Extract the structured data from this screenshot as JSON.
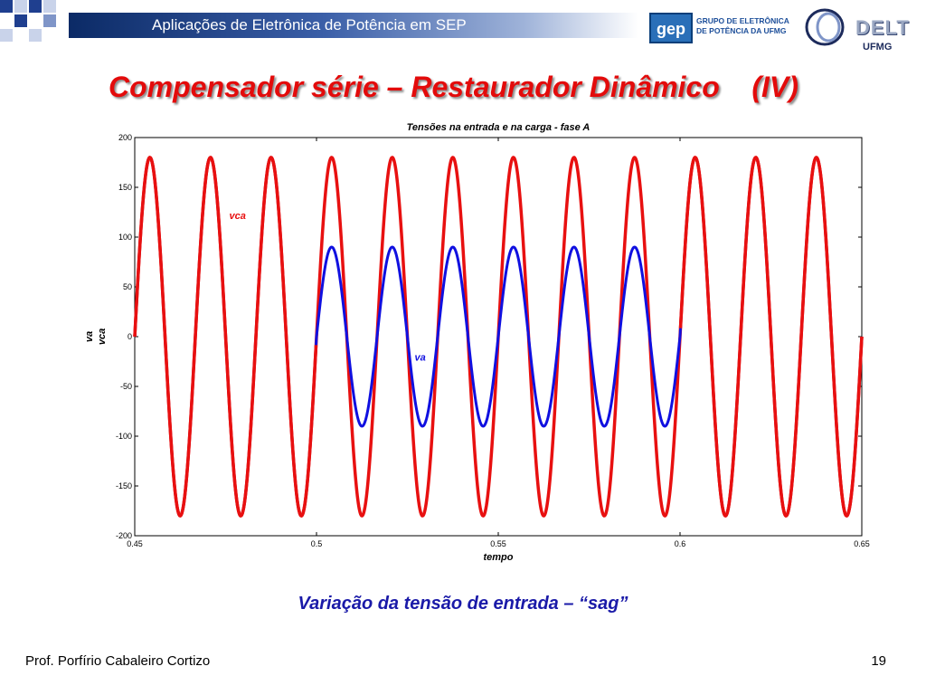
{
  "header": {
    "title": "Aplicações de Eletrônica de Potência em SEP",
    "logo_gep": "gep",
    "logo_gep_name": "GRUPO DE ELETRÔNICA DE POTÊNCIA DA UFMG",
    "logo_delt": "DELT",
    "logo_ufmg": "UFMG",
    "strip_color": "#0b2a66"
  },
  "slide": {
    "title": "Compensador série – Restaurador Dinâmico    (IV)",
    "caption": "Variação da tensão de entrada – “sag”",
    "author": "Prof. Porfírio Cabaleiro Cortizo",
    "page": "19"
  },
  "chart_data": {
    "type": "line",
    "title": "Tensões na entrada e na carga - fase A",
    "xlabel": "tempo",
    "ylabel": [
      "va",
      "vca"
    ],
    "xlim": [
      0.45,
      0.65
    ],
    "ylim": [
      -200,
      200
    ],
    "xticks": [
      0.45,
      0.5,
      0.55,
      0.6,
      0.65
    ],
    "yticks": [
      200,
      150,
      100,
      50,
      0,
      -50,
      -100,
      -150,
      -200
    ],
    "grid": false,
    "frequency_hz": 60,
    "series": [
      {
        "name": "va",
        "color": "#1010e0",
        "amplitude": 180,
        "sag_amplitude": 90,
        "sag_start": 0.5,
        "sag_end": 0.6,
        "annotation": "va"
      },
      {
        "name": "vca",
        "color": "#e81010",
        "amplitude": 180,
        "annotation": "vca"
      }
    ]
  }
}
